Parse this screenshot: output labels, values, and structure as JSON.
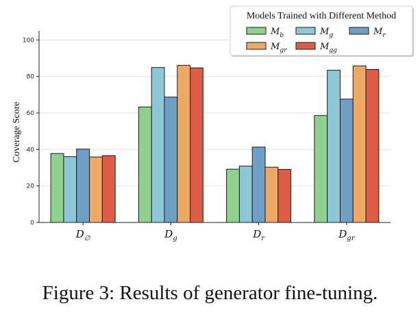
{
  "caption": "Figure 3: Results of generator fine-tuning.",
  "chart_data": {
    "type": "bar",
    "ylabel": "Coverage Score",
    "xlabel": "",
    "ylim": [
      0,
      105
    ],
    "yticks": [
      0,
      20,
      40,
      60,
      80,
      100
    ],
    "grid": "horizontal",
    "legend_placement": "top-right",
    "legend_title": "Models Trained with Different Method",
    "categories": [
      {
        "base": "D",
        "sub": "∅"
      },
      {
        "base": "D",
        "sub": "g"
      },
      {
        "base": "D",
        "sub": "r"
      },
      {
        "base": "D",
        "sub": "gr"
      }
    ],
    "series": [
      {
        "base": "M",
        "sub": "b",
        "color": "#8fd18f",
        "values": [
          37.8,
          63.3,
          29.2,
          58.6
        ]
      },
      {
        "base": "M",
        "sub": "g",
        "color": "#8fc7d6",
        "values": [
          36.1,
          84.9,
          30.9,
          83.4
        ]
      },
      {
        "base": "M",
        "sub": "r",
        "color": "#6f9fc3",
        "values": [
          40.2,
          68.7,
          41.3,
          67.6
        ]
      },
      {
        "base": "M",
        "sub": "gr",
        "color": "#edaa67",
        "values": [
          35.9,
          86.1,
          30.3,
          85.8
        ]
      },
      {
        "base": "M",
        "sub": "gg",
        "color": "#dc5d45",
        "values": [
          36.6,
          84.7,
          29.1,
          83.8
        ]
      }
    ]
  }
}
